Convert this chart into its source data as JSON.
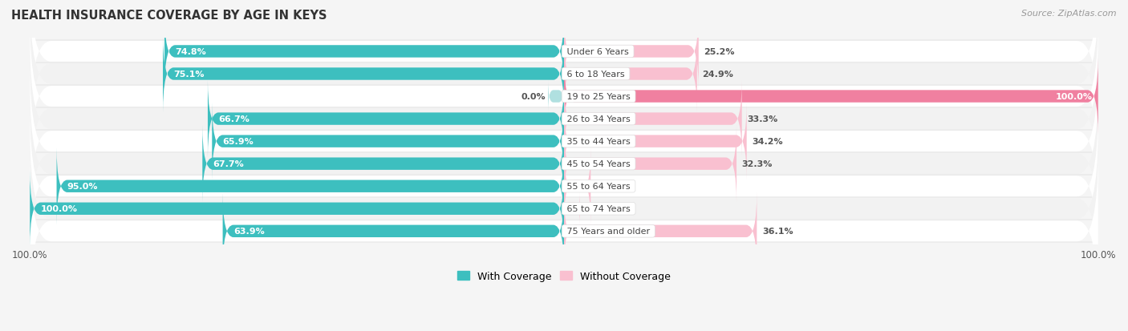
{
  "title": "HEALTH INSURANCE COVERAGE BY AGE IN KEYS",
  "source": "Source: ZipAtlas.com",
  "categories": [
    "Under 6 Years",
    "6 to 18 Years",
    "19 to 25 Years",
    "26 to 34 Years",
    "35 to 44 Years",
    "45 to 54 Years",
    "55 to 64 Years",
    "65 to 74 Years",
    "75 Years and older"
  ],
  "with_coverage": [
    74.8,
    75.1,
    0.0,
    66.7,
    65.9,
    67.7,
    95.0,
    100.0,
    63.9
  ],
  "without_coverage": [
    25.2,
    24.9,
    100.0,
    33.3,
    34.2,
    32.3,
    5.0,
    0.0,
    36.1
  ],
  "color_with": "#3DBFBF",
  "color_with_light": "#B0E0E0",
  "color_without": "#F080A0",
  "color_without_light": "#F9C0D0",
  "legend_with": "With Coverage",
  "legend_without": "Without Coverage",
  "row_colors": [
    "#FFFFFF",
    "#F2F2F2"
  ],
  "bg_color": "#F5F5F5"
}
